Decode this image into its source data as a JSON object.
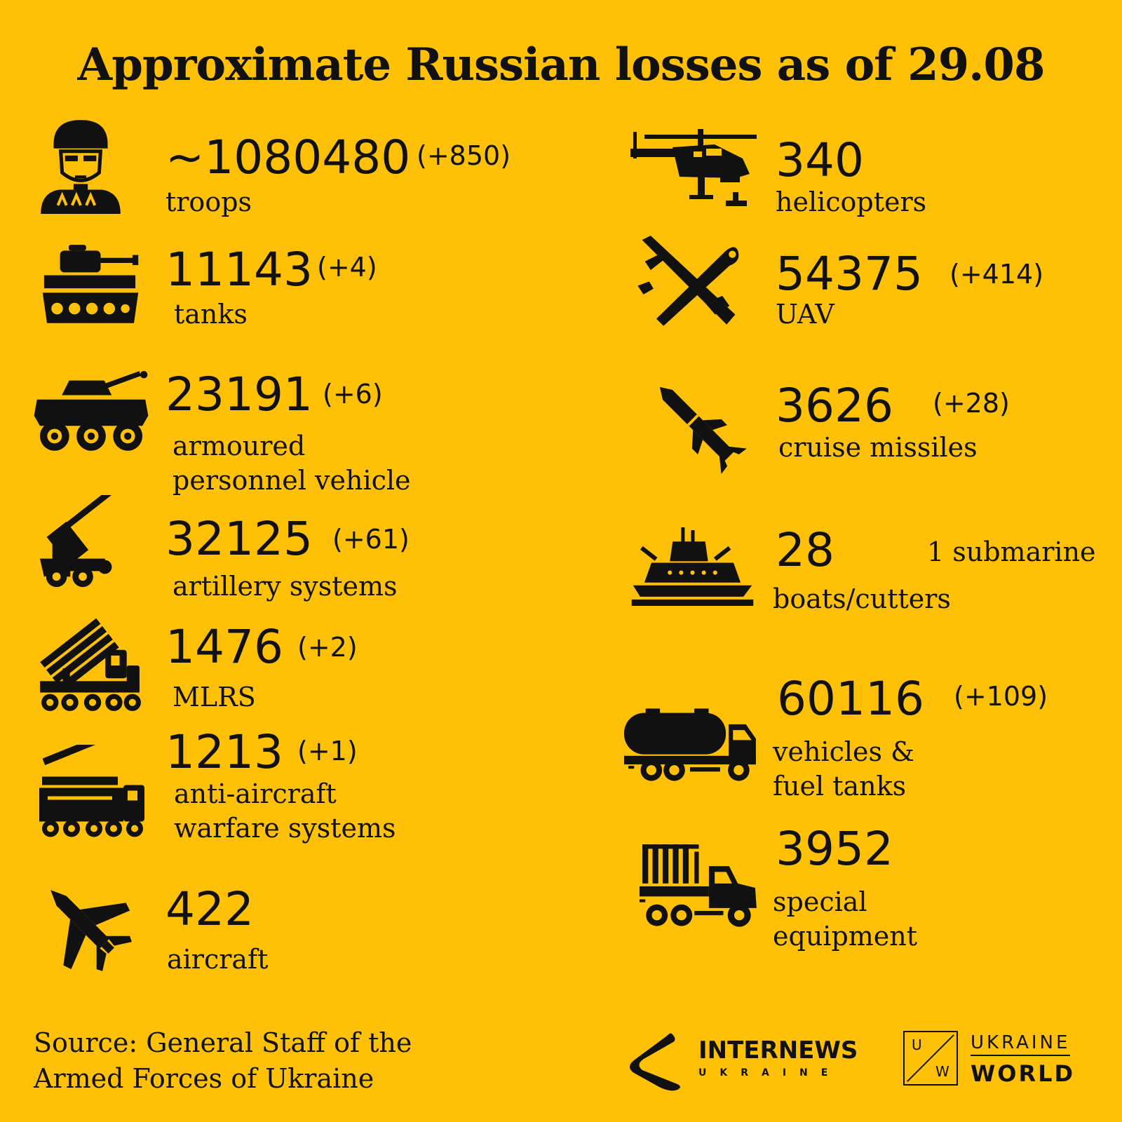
{
  "title": "Approximate Russian losses as of 29.08",
  "colors": {
    "background": "#FFC107",
    "foreground": "#111111"
  },
  "items": {
    "troops": {
      "icon": "soldier-icon",
      "value": "~1080480",
      "delta": "(+850)",
      "label": [
        "troops"
      ]
    },
    "tanks": {
      "icon": "tank-icon",
      "value": "11143",
      "delta": "(+4)",
      "label": [
        "tanks"
      ]
    },
    "apv": {
      "icon": "armoured-vehicle-icon",
      "value": "23191",
      "delta": "(+6)",
      "label": [
        "armoured",
        "personnel vehicle"
      ]
    },
    "artillery": {
      "icon": "artillery-icon",
      "value": "32125",
      "delta": "(+61)",
      "label": [
        "artillery systems"
      ]
    },
    "mlrs": {
      "icon": "mlrs-icon",
      "value": "1476",
      "delta": "(+2)",
      "label": [
        "MLRS"
      ]
    },
    "antiair": {
      "icon": "anti-aircraft-icon",
      "value": "1213",
      "delta": "(+1)",
      "label": [
        "anti-aircraft",
        "warfare systems"
      ]
    },
    "aircraft": {
      "icon": "aircraft-icon",
      "value": "422",
      "delta": "",
      "label": [
        "aircraft"
      ]
    },
    "helicopters": {
      "icon": "helicopter-icon",
      "value": "340",
      "delta": "",
      "label": [
        "helicopters"
      ]
    },
    "uav": {
      "icon": "uav-icon",
      "value": "54375",
      "delta": "(+414)",
      "label": [
        "UAV"
      ]
    },
    "missiles": {
      "icon": "missile-icon",
      "value": "3626",
      "delta": "(+28)",
      "label": [
        "cruise missiles"
      ]
    },
    "boats": {
      "icon": "ship-icon",
      "value": "28",
      "note": "1 submarine",
      "label": [
        "boats/cutters"
      ]
    },
    "vehicles": {
      "icon": "fuel-truck-icon",
      "value": "60116",
      "delta": "(+109)",
      "label": [
        "vehicles &",
        "fuel tanks"
      ]
    },
    "special": {
      "icon": "special-truck-icon",
      "value": "3952",
      "delta": "",
      "label": [
        "special",
        "equipment"
      ]
    }
  },
  "source": [
    "Source: General Staff of the",
    "Armed Forces of Ukraine"
  ],
  "logos": {
    "internews": {
      "title": "INTERNEWS",
      "sub": "UKRAINE"
    },
    "ukraineworld": {
      "u": "U",
      "w": "W",
      "top": "UKRAINE",
      "bottom": "WORLD"
    }
  }
}
